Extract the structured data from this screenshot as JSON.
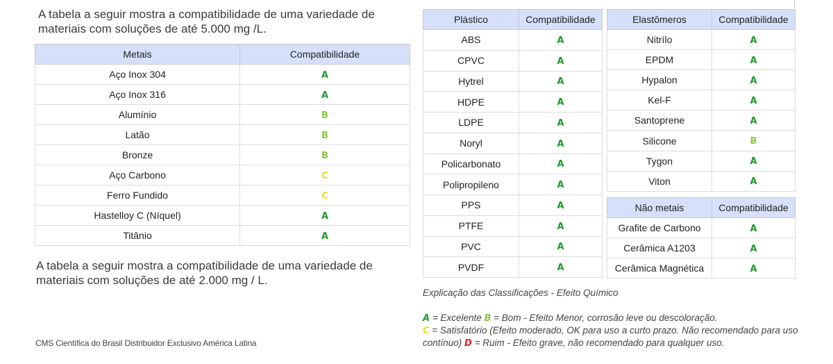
{
  "colors": {
    "A": "#1e9a2b",
    "B": "#8bc63f",
    "C": "#e8e22a",
    "D": "#dd1f26",
    "header_bg": "#d6e0fb"
  },
  "intro_top": "A tabela a seguir mostra a compatibilidade de uma variedade de materiais com soluções de até 5.000 mg /L.",
  "intro_bottom": "A tabela a seguir mostra a compatibilidade de uma variedade de materiais com soluções de até 2.000 mg / L.",
  "metais": {
    "headers": [
      "Metais",
      "Compatibilidade"
    ],
    "rows": [
      {
        "name": "Aço Inox 304",
        "grade": "A"
      },
      {
        "name": "Aço Inox 316",
        "grade": "A"
      },
      {
        "name": "Alumínio",
        "grade": "B"
      },
      {
        "name": "Latão",
        "grade": "B"
      },
      {
        "name": "Bronze",
        "grade": "B"
      },
      {
        "name": "Aço Carbono",
        "grade": "C"
      },
      {
        "name": "Ferro Fundido",
        "grade": "C"
      },
      {
        "name": "Hastelloy C (Níquel)",
        "grade": "A"
      },
      {
        "name": "Titânio",
        "grade": "A"
      }
    ]
  },
  "plastico": {
    "headers": [
      "Plástico",
      "Compatibilidade"
    ],
    "rows": [
      {
        "name": "ABS",
        "grade": "A"
      },
      {
        "name": "CPVC",
        "grade": "A"
      },
      {
        "name": "Hytrel",
        "grade": "A"
      },
      {
        "name": "HDPE",
        "grade": "A"
      },
      {
        "name": "LDPE",
        "grade": "A"
      },
      {
        "name": "Noryl",
        "grade": "A"
      },
      {
        "name": "Policarbonato",
        "grade": "A"
      },
      {
        "name": "Polipropileno",
        "grade": "A"
      },
      {
        "name": "PPS",
        "grade": "A"
      },
      {
        "name": "PTFE",
        "grade": "A"
      },
      {
        "name": "PVC",
        "grade": "A"
      },
      {
        "name": "PVDF",
        "grade": "A"
      }
    ]
  },
  "elastomeros": {
    "headers": [
      "Elastômeros",
      "Compatibilidade"
    ],
    "rows": [
      {
        "name": "Nitrílo",
        "grade": "A"
      },
      {
        "name": "EPDM",
        "grade": "A"
      },
      {
        "name": "Hypalon",
        "grade": "A"
      },
      {
        "name": "Kel-F",
        "grade": "A"
      },
      {
        "name": "Santoprene",
        "grade": "A"
      },
      {
        "name": "Silicone",
        "grade": "B"
      },
      {
        "name": "Tygon",
        "grade": "A"
      },
      {
        "name": "Viton",
        "grade": "A"
      }
    ]
  },
  "nao_metais": {
    "headers": [
      "Não metais",
      "Compatibilidade"
    ],
    "rows": [
      {
        "name": "Grafite de Carbono",
        "grade": "A"
      },
      {
        "name": "Cerâmica A1203",
        "grade": "A"
      },
      {
        "name": "Cerâmica Magnética",
        "grade": "A"
      }
    ]
  },
  "legend": {
    "title": "Explicação das Classificações - Efeito Químico",
    "items": [
      {
        "grade": "A",
        "text": " = Excelente "
      },
      {
        "grade": "B",
        "text": " = Bom - Efeito Menor, corrosão leve ou descoloração."
      },
      {
        "grade": "C",
        "text": " = Satisfatório (Efeito moderado, OK para uso a curto prazo. Não recomendado para uso contínuo) "
      },
      {
        "grade": "D",
        "text": " = Ruim - Efeito grave, não recomendado para qualquer uso."
      }
    ]
  },
  "footer": "CMS Científica do Brasil Distribuidor Exclusivo América Latina"
}
